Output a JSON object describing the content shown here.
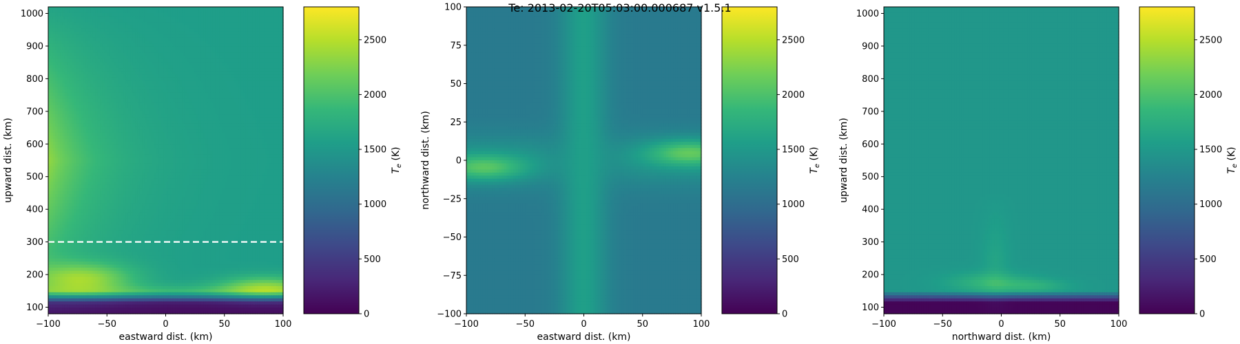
{
  "title": "Te: 2013-02-20T05:03:00.000687 v1.5.1",
  "chart_data": [
    {
      "type": "heatmap",
      "xlabel": "eastward dist. (km)",
      "ylabel": "upward dist. (km)",
      "xlim": [
        -100,
        100
      ],
      "ylim": [
        80,
        1020
      ],
      "xticks": [
        -100,
        -50,
        0,
        50,
        100
      ],
      "yticks": [
        100,
        200,
        300,
        400,
        500,
        600,
        700,
        800,
        900,
        1000
      ],
      "colorbar": {
        "label": "T_e (K)",
        "range": [
          0,
          2800
        ],
        "ticks": [
          0,
          500,
          1000,
          1500,
          2000,
          2500
        ]
      },
      "annotations": [
        {
          "type": "hline",
          "style": "dashed",
          "color": "#ffffff",
          "y": 300
        }
      ]
    },
    {
      "type": "heatmap",
      "xlabel": "eastward dist. (km)",
      "ylabel": "northward dist. (km)",
      "xlim": [
        -100,
        100
      ],
      "ylim": [
        -100,
        100
      ],
      "xticks": [
        -100,
        -50,
        0,
        50,
        100
      ],
      "yticks": [
        -100,
        -75,
        -50,
        -25,
        0,
        25,
        50,
        75,
        100
      ],
      "colorbar": {
        "label": "T_e (K)",
        "range": [
          0,
          2800
        ],
        "ticks": [
          0,
          500,
          1000,
          1500,
          2000,
          2500
        ]
      }
    },
    {
      "type": "heatmap",
      "xlabel": "northward dist. (km)",
      "ylabel": "upward dist. (km)",
      "xlim": [
        -100,
        100
      ],
      "ylim": [
        80,
        1020
      ],
      "xticks": [
        -100,
        -50,
        0,
        50,
        100
      ],
      "yticks": [
        100,
        200,
        300,
        400,
        500,
        600,
        700,
        800,
        900,
        1000
      ],
      "colorbar": {
        "label": "T_e (K)",
        "range": [
          0,
          2800
        ],
        "ticks": [
          0,
          500,
          1000,
          1500,
          2000,
          2500
        ]
      }
    }
  ]
}
